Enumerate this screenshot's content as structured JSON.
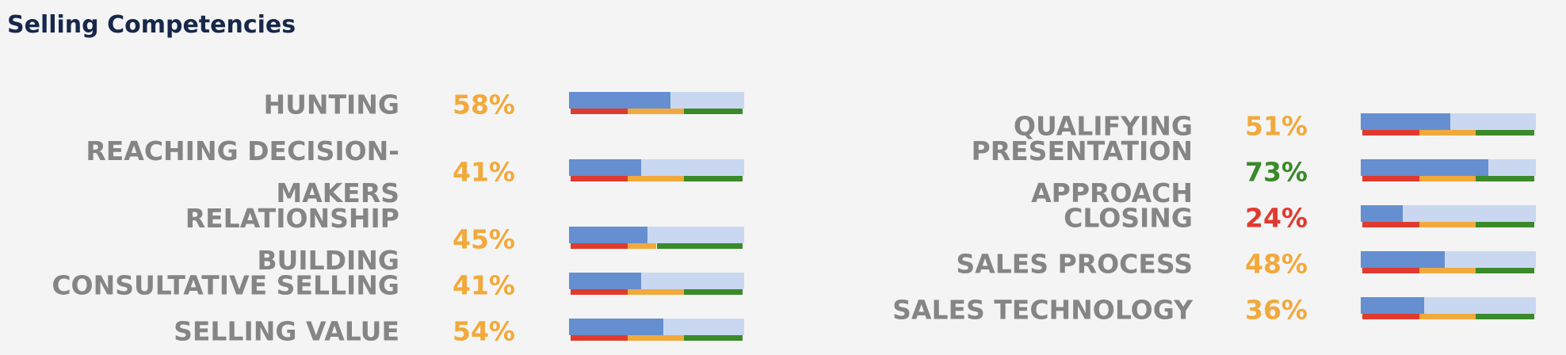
{
  "title": "Selling Competencies",
  "colors": {
    "fill": "#658fd0",
    "track": "#c9d8f0",
    "low": "#e03a2f",
    "mid": "#f2a93b",
    "high": "#3a8a2a"
  },
  "columns": [
    {
      "items": [
        {
          "name": "HUNTING",
          "value": 58,
          "value_label": "58%",
          "thresholds": [
            33,
            66
          ]
        },
        {
          "name": "REACHING DECISION-MAKERS",
          "value": 41,
          "value_label": "41%",
          "thresholds": [
            33,
            66
          ]
        },
        {
          "name": "RELATIONSHIP BUILDING",
          "value": 45,
          "value_label": "45%",
          "thresholds": [
            33,
            50
          ]
        },
        {
          "name": "CONSULTATIVE SELLING",
          "value": 41,
          "value_label": "41%",
          "thresholds": [
            33,
            66
          ]
        },
        {
          "name": "SELLING VALUE",
          "value": 54,
          "value_label": "54%",
          "thresholds": [
            33,
            66
          ]
        }
      ]
    },
    {
      "items": [
        {
          "name": "QUALIFYING",
          "value": 51,
          "value_label": "51%",
          "thresholds": [
            33,
            66
          ]
        },
        {
          "name": "PRESENTATION APPROACH",
          "value": 73,
          "value_label": "73%",
          "thresholds": [
            33,
            66
          ]
        },
        {
          "name": "CLOSING",
          "value": 24,
          "value_label": "24%",
          "thresholds": [
            33,
            66
          ]
        },
        {
          "name": "SALES PROCESS",
          "value": 48,
          "value_label": "48%",
          "thresholds": [
            33,
            66
          ]
        },
        {
          "name": "SALES TECHNOLOGY",
          "value": 36,
          "value_label": "36%",
          "thresholds": [
            33,
            66
          ]
        }
      ]
    }
  ]
}
